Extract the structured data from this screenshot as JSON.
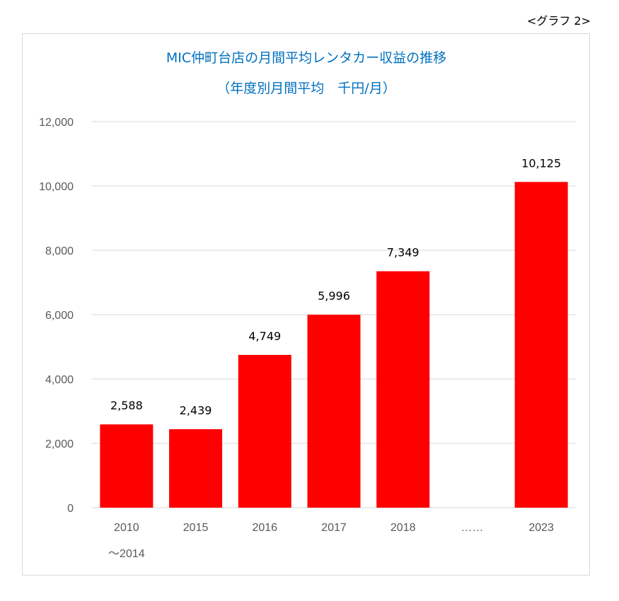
{
  "graph_tag": "<グラフ 2>",
  "chart_data": {
    "type": "bar",
    "title": "MIC仲町台店の月間平均レンタカー収益の推移",
    "subtitle": "（年度別月間平均　千円/月）",
    "categories": [
      [
        "2010",
        "～2014"
      ],
      [
        "2015"
      ],
      [
        "2016"
      ],
      [
        "2017"
      ],
      [
        "2018"
      ],
      [
        "……"
      ],
      [
        "2023"
      ]
    ],
    "values": [
      2588,
      2439,
      4749,
      5996,
      7349,
      null,
      10125
    ],
    "data_labels": [
      "2,588",
      "2,439",
      "4,749",
      "5,996",
      "7,349",
      "",
      "10,125"
    ],
    "yticks": [
      "0",
      "2,000",
      "4,000",
      "6,000",
      "8,000",
      "10,000",
      "12,000"
    ],
    "ylim": [
      0,
      12000
    ],
    "grid": true,
    "legend": "none",
    "bar_color": "#ff0000"
  }
}
